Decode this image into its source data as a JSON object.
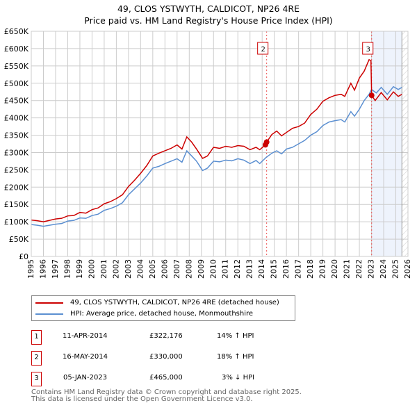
{
  "title_line1": "49, CLOS YSTWYTH, CALDICOT, NP26 4RE",
  "title_line2": "Price paid vs. HM Land Registry's House Price Index (HPI)",
  "colors": {
    "property": "#cc0000",
    "hpi": "#5b8fd1",
    "shade": "#eef3fc"
  },
  "chart_data": {
    "type": "line",
    "xlim": [
      1995,
      2026
    ],
    "ylim": [
      0,
      650000
    ],
    "yticks": [
      0,
      50000,
      100000,
      150000,
      200000,
      250000,
      300000,
      350000,
      400000,
      450000,
      500000,
      550000,
      600000,
      650000
    ],
    "ytick_labels": [
      "£0",
      "£50K",
      "£100K",
      "£150K",
      "£200K",
      "£250K",
      "£300K",
      "£350K",
      "£400K",
      "£450K",
      "£500K",
      "£550K",
      "£600K",
      "£650K"
    ],
    "xticks": [
      "1995",
      "1996",
      "1997",
      "1998",
      "1999",
      "2000",
      "2001",
      "2002",
      "2003",
      "2004",
      "2005",
      "2006",
      "2007",
      "2008",
      "2009",
      "2010",
      "2011",
      "2012",
      "2013",
      "2014",
      "2015",
      "2016",
      "2017",
      "2018",
      "2019",
      "2020",
      "2021",
      "2022",
      "2023",
      "2024",
      "2025",
      "2026"
    ],
    "grid": true,
    "series": [
      {
        "name": "49, CLOS YSTWYTH, CALDICOT, NP26 4RE (detached house)",
        "color": "#cc0000",
        "x": [
          1995,
          1995.5,
          1996,
          1996.5,
          1997,
          1997.5,
          1998,
          1998.5,
          1999,
          1999.5,
          2000,
          2000.5,
          2001,
          2001.5,
          2002,
          2002.5,
          2003,
          2003.5,
          2004,
          2004.5,
          2005,
          2005.5,
          2006,
          2006.5,
          2007,
          2007.4,
          2007.8,
          2008.2,
          2008.6,
          2009.1,
          2009.5,
          2010,
          2010.5,
          2011,
          2011.5,
          2012,
          2012.5,
          2013,
          2013.5,
          2013.8,
          2014.27,
          2014.37,
          2014.8,
          2015.2,
          2015.6,
          2016,
          2016.5,
          2017,
          2017.5,
          2018,
          2018.5,
          2019,
          2019.5,
          2020,
          2020.5,
          2020.8,
          2021.3,
          2021.6,
          2022,
          2022.4,
          2022.8,
          2022.95,
          2023.01,
          2023.3,
          2023.8,
          2024.3,
          2024.8,
          2025.2,
          2025.5
        ],
        "y": [
          105000,
          103000,
          100000,
          104000,
          108000,
          110000,
          117000,
          118000,
          127000,
          125000,
          135000,
          140000,
          152000,
          158000,
          167000,
          178000,
          202000,
          220000,
          240000,
          262000,
          290000,
          298000,
          305000,
          312000,
          322000,
          310000,
          345000,
          330000,
          310000,
          283000,
          290000,
          315000,
          312000,
          318000,
          315000,
          320000,
          318000,
          308000,
          315000,
          308000,
          322176,
          330000,
          352000,
          362000,
          348000,
          358000,
          370000,
          375000,
          385000,
          410000,
          425000,
          448000,
          458000,
          465000,
          468000,
          462000,
          500000,
          480000,
          515000,
          535000,
          568000,
          565000,
          465000,
          450000,
          473000,
          452000,
          475000,
          462000,
          468000
        ]
      },
      {
        "name": "HPI: Average price, detached house, Monmouthshire",
        "color": "#5b8fd1",
        "x": [
          1995,
          1995.5,
          1996,
          1996.5,
          1997,
          1997.5,
          1998,
          1998.5,
          1999,
          1999.5,
          2000,
          2000.5,
          2001,
          2001.5,
          2002,
          2002.5,
          2003,
          2003.5,
          2004,
          2004.5,
          2005,
          2005.5,
          2006,
          2006.5,
          2007,
          2007.4,
          2007.8,
          2008.2,
          2008.6,
          2009.1,
          2009.5,
          2010,
          2010.5,
          2011,
          2011.5,
          2012,
          2012.5,
          2013,
          2013.5,
          2013.8,
          2014.3,
          2014.8,
          2015.2,
          2015.6,
          2016,
          2016.5,
          2017,
          2017.5,
          2018,
          2018.5,
          2019,
          2019.5,
          2020,
          2020.5,
          2020.8,
          2021.3,
          2021.6,
          2022,
          2022.4,
          2022.8,
          2023,
          2023.4,
          2023.8,
          2024.3,
          2024.8,
          2025.2,
          2025.5
        ],
        "y": [
          92000,
          90000,
          87000,
          90000,
          93000,
          95000,
          102000,
          104000,
          111000,
          110000,
          118000,
          122000,
          133000,
          138000,
          145000,
          155000,
          178000,
          195000,
          212000,
          232000,
          255000,
          260000,
          268000,
          275000,
          282000,
          272000,
          305000,
          290000,
          275000,
          248000,
          255000,
          275000,
          273000,
          278000,
          276000,
          282000,
          278000,
          268000,
          277000,
          268000,
          285000,
          298000,
          305000,
          296000,
          310000,
          315000,
          325000,
          335000,
          350000,
          360000,
          378000,
          388000,
          392000,
          395000,
          388000,
          418000,
          405000,
          425000,
          450000,
          468000,
          482000,
          472000,
          488000,
          468000,
          490000,
          482000,
          488000
        ]
      }
    ],
    "markers": [
      {
        "id": "1",
        "x": 2014.27,
        "y": 322176,
        "label_shown": false
      },
      {
        "id": "2",
        "x": 2014.37,
        "y": 330000,
        "label_shown": true
      },
      {
        "id": "3",
        "x": 2023.01,
        "y": 465000,
        "label_shown": true
      }
    ],
    "shaded_from": 2023.01,
    "hatched_from": 2025.5
  },
  "legend": [
    {
      "label": "49, CLOS YSTWYTH, CALDICOT, NP26 4RE (detached house)"
    },
    {
      "label": "HPI: Average price, detached house, Monmouthshire"
    }
  ],
  "transactions": [
    {
      "num": "1",
      "date": "11-APR-2014",
      "price": "£322,176",
      "hpi": "14% ↑ HPI"
    },
    {
      "num": "2",
      "date": "16-MAY-2014",
      "price": "£330,000",
      "hpi": "18% ↑ HPI"
    },
    {
      "num": "3",
      "date": "05-JAN-2023",
      "price": "£465,000",
      "hpi": "3% ↓ HPI"
    }
  ],
  "footer1": "Contains HM Land Registry data © Crown copyright and database right 2025.",
  "footer2": "This data is licensed under the Open Government Licence v3.0."
}
